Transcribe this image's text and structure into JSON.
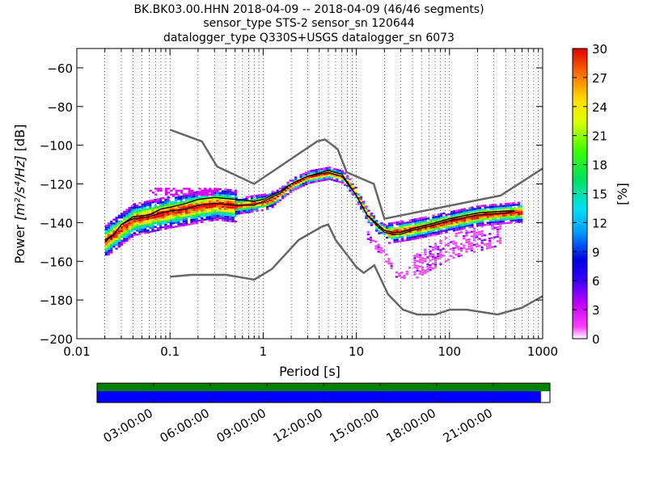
{
  "title_lines": [
    "BK.BK03.00.HHN   2018-04-09 -- 2018-04-09  (46/46 segments)",
    "sensor_type STS-2 sensor_sn 120644",
    "datalogger_type Q330S+USGS datalogger_sn 6073"
  ],
  "chart_data": {
    "type": "heatmap",
    "xlabel": "Period [s]",
    "ylabel_prefix": "Power ",
    "ylabel_math": "[m²/s⁴/Hz]",
    "ylabel_suffix": " [dB]",
    "x_scale": "log",
    "xlim": [
      0.01,
      1000
    ],
    "ylim": [
      -200,
      -50
    ],
    "x_ticks": [
      0.01,
      0.1,
      1,
      10,
      100,
      1000
    ],
    "x_tick_labels": [
      "0.01",
      "0.1",
      "1",
      "10",
      "100",
      "1000"
    ],
    "y_ticks": [
      -200,
      -180,
      -160,
      -140,
      -120,
      -100,
      -80,
      -60
    ],
    "y_tick_labels": [
      "−200",
      "−180",
      "−160",
      "−140",
      "−120",
      "−100",
      "−80",
      "−60"
    ],
    "grid": "dotted, vertical at log subdivisions",
    "colorbar": {
      "label": "[%]",
      "range": [
        0,
        30
      ],
      "ticks": [
        0,
        3,
        6,
        9,
        12,
        15,
        18,
        21,
        24,
        27,
        30
      ],
      "tick_labels": [
        "0",
        "3",
        "6",
        "9",
        "12",
        "15",
        "18",
        "21",
        "24",
        "27",
        "30"
      ],
      "colormap": "pqlx (white → magenta → blue → cyan → green → yellow → red)"
    },
    "mode_curve": [
      [
        0.02,
        -150
      ],
      [
        0.025,
        -146
      ],
      [
        0.03,
        -141
      ],
      [
        0.04,
        -138
      ],
      [
        0.06,
        -137
      ],
      [
        0.08,
        -135
      ],
      [
        0.1,
        -134
      ],
      [
        0.15,
        -133
      ],
      [
        0.2,
        -131
      ],
      [
        0.3,
        -130
      ],
      [
        0.5,
        -131
      ],
      [
        0.8,
        -131
      ],
      [
        1,
        -129
      ],
      [
        1.5,
        -125
      ],
      [
        2,
        -120
      ],
      [
        3,
        -116
      ],
      [
        5,
        -114
      ],
      [
        7,
        -116
      ],
      [
        10,
        -126
      ],
      [
        13,
        -136
      ],
      [
        17,
        -142
      ],
      [
        20,
        -145
      ],
      [
        25,
        -146
      ],
      [
        30,
        -146
      ],
      [
        40,
        -144
      ],
      [
        60,
        -142
      ],
      [
        100,
        -139
      ],
      [
        200,
        -136
      ],
      [
        400,
        -135
      ],
      [
        500,
        -134
      ]
    ],
    "mean_curve": [
      [
        0.02,
        -149
      ],
      [
        0.025,
        -146
      ],
      [
        0.03,
        -141
      ],
      [
        0.04,
        -137
      ],
      [
        0.06,
        -136
      ],
      [
        0.08,
        -133
      ],
      [
        0.1,
        -132
      ],
      [
        0.15,
        -130
      ],
      [
        0.2,
        -128
      ],
      [
        0.3,
        -127
      ],
      [
        0.5,
        -128
      ],
      [
        0.8,
        -129
      ],
      [
        1,
        -128
      ],
      [
        1.5,
        -124
      ],
      [
        2,
        -120
      ],
      [
        3,
        -116
      ],
      [
        5,
        -113
      ],
      [
        7,
        -115
      ],
      [
        10,
        -126
      ],
      [
        13,
        -136
      ],
      [
        17,
        -141
      ],
      [
        20,
        -144
      ],
      [
        25,
        -145
      ],
      [
        30,
        -145
      ],
      [
        40,
        -143
      ],
      [
        60,
        -141
      ],
      [
        100,
        -138
      ],
      [
        200,
        -135
      ],
      [
        400,
        -134
      ],
      [
        500,
        -134
      ]
    ],
    "nhnm": [
      [
        0.1,
        -92
      ],
      [
        0.22,
        -98
      ],
      [
        0.32,
        -111
      ],
      [
        0.8,
        -120
      ],
      [
        3.8,
        -98
      ],
      [
        4.6,
        -97
      ],
      [
        6.3,
        -102
      ],
      [
        7.9,
        -114
      ],
      [
        15.4,
        -120
      ],
      [
        20,
        -138
      ],
      [
        354,
        -126
      ],
      [
        1000,
        -112
      ]
    ],
    "nlnm": [
      [
        0.1,
        -168
      ],
      [
        0.17,
        -167
      ],
      [
        0.4,
        -167
      ],
      [
        0.8,
        -169.5
      ],
      [
        1.24,
        -164
      ],
      [
        2.4,
        -149
      ],
      [
        4.3,
        -142
      ],
      [
        5,
        -141
      ],
      [
        6,
        -149
      ],
      [
        10,
        -163
      ],
      [
        12,
        -166
      ],
      [
        15.6,
        -162
      ],
      [
        21.9,
        -177
      ],
      [
        31.6,
        -185
      ],
      [
        45,
        -187.5
      ],
      [
        70,
        -187.5
      ],
      [
        101,
        -185
      ],
      [
        154,
        -185
      ],
      [
        328,
        -187.5
      ],
      [
        600,
        -184
      ],
      [
        1000,
        -178
      ]
    ],
    "pdf_bands": [
      {
        "x0": 0.02,
        "x1": 0.5,
        "center": [
          [
            0.02,
            -149
          ],
          [
            0.04,
            -138
          ],
          [
            0.1,
            -134
          ],
          [
            0.3,
            -130
          ],
          [
            0.5,
            -131
          ]
        ],
        "half": 8,
        "noise": [
          [
            0.06,
            0.3,
            -122,
            -125,
            "#e000ff"
          ]
        ]
      },
      {
        "x0": 0.5,
        "x1": 1.3,
        "center": [
          [
            0.5,
            -131
          ],
          [
            1,
            -129
          ],
          [
            1.3,
            -127
          ]
        ],
        "half": 4
      },
      {
        "x0": 1.3,
        "x1": 9,
        "center": [
          [
            1.3,
            -127
          ],
          [
            2,
            -120
          ],
          [
            3,
            -116
          ],
          [
            5,
            -114
          ],
          [
            7,
            -116
          ],
          [
            9,
            -122
          ]
        ],
        "half": 3
      },
      {
        "x0": 9,
        "x1": 22,
        "center": [
          [
            9,
            -122
          ],
          [
            13,
            -136
          ],
          [
            17,
            -142
          ],
          [
            22,
            -145
          ]
        ],
        "half": 3
      },
      {
        "x0": 22,
        "x1": 600,
        "center": [
          [
            22,
            -145
          ],
          [
            40,
            -143
          ],
          [
            100,
            -139
          ],
          [
            200,
            -136
          ],
          [
            600,
            -134
          ]
        ],
        "half": 5
      }
    ],
    "outlier_branch": [
      [
        13,
        -146
      ],
      [
        20,
        -157
      ],
      [
        25,
        -165
      ],
      [
        30,
        -167
      ],
      [
        40,
        -163
      ],
      [
        60,
        -158
      ],
      [
        100,
        -152
      ],
      [
        200,
        -148
      ],
      [
        350,
        -145
      ]
    ]
  },
  "timeline": {
    "tick_labels": [
      "03:00:00",
      "06:00:00",
      "09:00:00",
      "12:00:00",
      "15:00:00",
      "18:00:00",
      "21:00:00"
    ],
    "hours": [
      3,
      6,
      9,
      12,
      15,
      18,
      21
    ],
    "coverage_fraction": 0.98,
    "coverage_color": "#0000ff",
    "data_bar_color": "#008000"
  }
}
